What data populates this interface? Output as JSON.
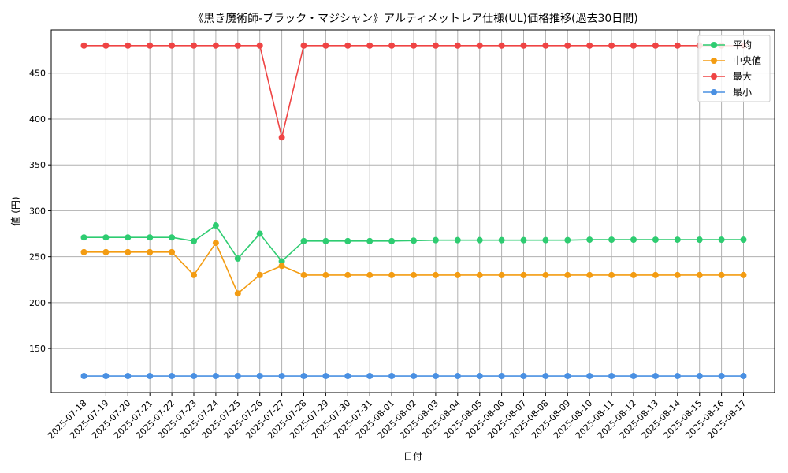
{
  "chart_data": {
    "type": "line",
    "title": "《黒き魔術師-ブラック・マジシャン》アルティメットレア仕様(UL)価格推移(過去30日間)",
    "xlabel": "日付",
    "ylabel": "値 (円)",
    "ylim": [
      102,
      497
    ],
    "yticks": [
      150,
      200,
      250,
      300,
      350,
      400,
      450
    ],
    "grid": true,
    "legend_position": "top-right",
    "categories": [
      "2025-07-18",
      "2025-07-19",
      "2025-07-20",
      "2025-07-21",
      "2025-07-22",
      "2025-07-23",
      "2025-07-24",
      "2025-07-25",
      "2025-07-26",
      "2025-07-27",
      "2025-07-28",
      "2025-07-29",
      "2025-07-30",
      "2025-07-31",
      "2025-08-01",
      "2025-08-02",
      "2025-08-03",
      "2025-08-04",
      "2025-08-05",
      "2025-08-06",
      "2025-08-07",
      "2025-08-08",
      "2025-08-09",
      "2025-08-10",
      "2025-08-11",
      "2025-08-12",
      "2025-08-13",
      "2025-08-14",
      "2025-08-15",
      "2025-08-16",
      "2025-08-17"
    ],
    "series": [
      {
        "name": "平均",
        "color": "#2ecc71",
        "values": [
          271,
          271,
          271,
          271,
          271,
          267,
          284,
          248,
          275,
          245,
          267,
          267,
          267,
          267,
          267,
          267.5,
          268,
          268,
          268,
          268,
          268,
          268,
          268,
          268.5,
          268.5,
          268.5,
          268.5,
          268.5,
          268.5,
          268.5,
          268.5
        ]
      },
      {
        "name": "中央値",
        "color": "#f39c12",
        "values": [
          255,
          255,
          255,
          255,
          255,
          230,
          265,
          210,
          230,
          240,
          230,
          230,
          230,
          230,
          230,
          230,
          230,
          230,
          230,
          230,
          230,
          230,
          230,
          230,
          230,
          230,
          230,
          230,
          230,
          230,
          230
        ]
      },
      {
        "name": "最大",
        "color": "#ef4444",
        "values": [
          480,
          480,
          480,
          480,
          480,
          480,
          480,
          480,
          480,
          380,
          480,
          480,
          480,
          480,
          480,
          480,
          480,
          480,
          480,
          480,
          480,
          480,
          480,
          480,
          480,
          480,
          480,
          480,
          480,
          480,
          480
        ]
      },
      {
        "name": "最小",
        "color": "#4a90e2",
        "values": [
          120,
          120,
          120,
          120,
          120,
          120,
          120,
          120,
          120,
          120,
          120,
          120,
          120,
          120,
          120,
          120,
          120,
          120,
          120,
          120,
          120,
          120,
          120,
          120,
          120,
          120,
          120,
          120,
          120,
          120,
          120
        ]
      }
    ]
  }
}
